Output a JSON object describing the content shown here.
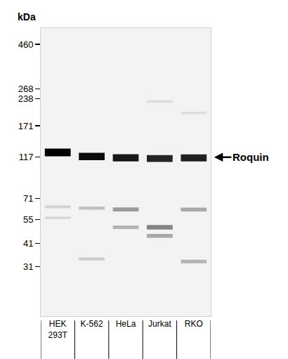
{
  "chart_data": {
    "type": "western_blot",
    "ylabel": "kDa",
    "categories": [
      "HEK\n293T",
      "K-562",
      "HeLa",
      "Jurkat",
      "RKO"
    ],
    "log": "y",
    "ylim": [
      17,
      560
    ],
    "yticks": [
      460,
      268,
      238,
      171,
      117,
      71,
      55,
      41,
      31
    ],
    "annotations": [
      {
        "text": "Roquin",
        "y": 117
      }
    ],
    "bands": [
      {
        "lane": "HEK\n293T",
        "kda": 124,
        "intensity": 1.0
      },
      {
        "lane": "K-562",
        "kda": 118,
        "intensity": 0.95
      },
      {
        "lane": "HeLa",
        "kda": 116,
        "intensity": 0.9
      },
      {
        "lane": "Jurkat",
        "kda": 115,
        "intensity": 0.85
      },
      {
        "lane": "RKO",
        "kda": 116,
        "intensity": 0.87
      },
      {
        "lane": "HEK\n293T",
        "kda": 64,
        "intensity": 0.12
      },
      {
        "lane": "K-562",
        "kda": 63,
        "intensity": 0.2
      },
      {
        "lane": "HeLa",
        "kda": 62,
        "intensity": 0.35
      },
      {
        "lane": "RKO",
        "kda": 62,
        "intensity": 0.3
      },
      {
        "lane": "HEK\n293T",
        "kda": 56,
        "intensity": 0.1
      },
      {
        "lane": "HeLa",
        "kda": 50,
        "intensity": 0.25
      },
      {
        "lane": "Jurkat",
        "kda": 50,
        "intensity": 0.45
      },
      {
        "lane": "Jurkat",
        "kda": 45,
        "intensity": 0.3
      },
      {
        "lane": "K-562",
        "kda": 34,
        "intensity": 0.15
      },
      {
        "lane": "RKO",
        "kda": 33,
        "intensity": 0.25
      },
      {
        "lane": "Jurkat",
        "kda": 230,
        "intensity": 0.08
      },
      {
        "lane": "RKO",
        "kda": 200,
        "intensity": 0.08
      }
    ]
  }
}
